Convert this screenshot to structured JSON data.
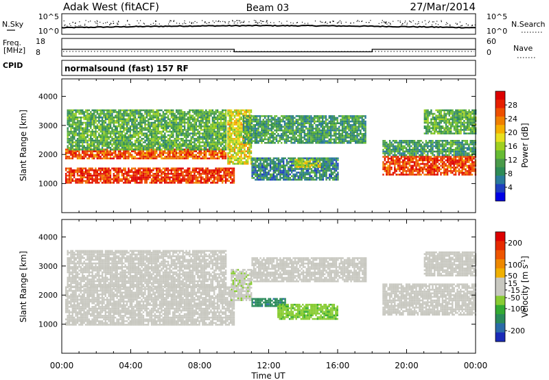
{
  "header": {
    "site": "Adak West (fitACF)",
    "beam": "Beam 03",
    "date": "27/Mar/2014"
  },
  "noise_panel": {
    "left_label": "N.Sky",
    "left_ticks": [
      "10^5",
      "10^0"
    ],
    "right_label": "N.Search",
    "right_ticks": [
      "10^5",
      "10^0"
    ]
  },
  "freq_panel": {
    "left_label_1": "Freq.",
    "left_label_2": "[MHz]",
    "left_ticks": [
      "18",
      "8"
    ],
    "right_label": "Nave",
    "right_ticks": [
      "60",
      "0"
    ],
    "freq_steps": [
      {
        "t0": 0,
        "t1": 10,
        "mhz": 12.5
      },
      {
        "t0": 10,
        "t1": 18,
        "mhz": 10.5
      },
      {
        "t0": 18,
        "t1": 24,
        "mhz": 12.5
      }
    ]
  },
  "cpid": {
    "label": "CPID",
    "program": "normalsound (fast) 157 RF"
  },
  "x_axis": {
    "ticks": [
      "00:00",
      "04:00",
      "08:00",
      "12:00",
      "16:00",
      "20:00",
      "00:00"
    ],
    "label": "Time UT"
  },
  "colors": {
    "frame": "#000000",
    "velocity_ground": "#c8c8c0"
  },
  "chart_data": [
    {
      "type": "heatmap",
      "quantity": "Power",
      "ylabel": "Slant Range [km]",
      "yticks": [
        "1000",
        "2000",
        "3000",
        "4000"
      ],
      "ylim": [
        0,
        4600
      ],
      "xlim": [
        0,
        24
      ],
      "colorbar": {
        "label": "Power [dB]",
        "ticks": [
          "28",
          "24",
          "20",
          "16",
          "12",
          "8",
          "4"
        ],
        "range": [
          0,
          32
        ],
        "colors": [
          "#0000e6",
          "#1f3fbf",
          "#2a7a9a",
          "#2e8b57",
          "#4a9a4a",
          "#66bb33",
          "#a0d020",
          "#e8e020",
          "#f5b000",
          "#f08000",
          "#ee5000",
          "#e62000",
          "#dd0000"
        ]
      },
      "echo_regions": [
        {
          "t0": 0.2,
          "t1": 10.0,
          "r0": 1000,
          "r1": 1550,
          "db": 28
        },
        {
          "t0": 0.2,
          "t1": 9.5,
          "r0": 1850,
          "r1": 2200,
          "db": 26
        },
        {
          "t0": 0.3,
          "t1": 9.5,
          "r0": 2200,
          "r1": 3550,
          "db": 12
        },
        {
          "t0": 9.6,
          "t1": 11.0,
          "r0": 1700,
          "r1": 3550,
          "db": 18
        },
        {
          "t0": 10.5,
          "t1": 17.6,
          "r0": 2400,
          "r1": 3350,
          "db": 10
        },
        {
          "t0": 11.0,
          "t1": 16.0,
          "r0": 1150,
          "r1": 1900,
          "db": 8
        },
        {
          "t0": 13.5,
          "t1": 15.0,
          "r0": 1550,
          "r1": 1850,
          "db": 16
        },
        {
          "t0": 18.6,
          "t1": 24.0,
          "r0": 1300,
          "r1": 1950,
          "db": 27
        },
        {
          "t0": 18.6,
          "t1": 24.0,
          "r0": 2000,
          "r1": 2500,
          "db": 10
        },
        {
          "t0": 21.0,
          "t1": 24.0,
          "r0": 2700,
          "r1": 3550,
          "db": 12
        }
      ]
    },
    {
      "type": "heatmap",
      "quantity": "Velocity",
      "ylabel": "Slant Range [km]",
      "yticks": [
        "1000",
        "2000",
        "3000",
        "4000"
      ],
      "ylim": [
        0,
        4600
      ],
      "xlim": [
        0,
        24
      ],
      "colorbar": {
        "label": "Velocity [m s^-1]",
        "ticks": [
          "200",
          "100",
          "50",
          "15",
          "-15",
          "-50",
          "-100",
          "-200"
        ],
        "range": [
          -250,
          250
        ],
        "colors": [
          "#1a2ab8",
          "#2a6aa8",
          "#2a8a5a",
          "#33aa33",
          "#88cc33",
          "#c8c8c0",
          "#c8c8c0",
          "#f0b000",
          "#ee8800",
          "#ee5500",
          "#e62a00",
          "#dd0000"
        ]
      },
      "echo_regions": [
        {
          "t0": 0.2,
          "t1": 10.0,
          "r0": 1000,
          "r1": 2300,
          "mps": 0
        },
        {
          "t0": 0.3,
          "t1": 9.5,
          "r0": 2300,
          "r1": 3550,
          "mps": 0
        },
        {
          "t0": 9.8,
          "t1": 11.0,
          "r0": 1800,
          "r1": 2900,
          "mps": -30
        },
        {
          "t0": 11.0,
          "t1": 17.6,
          "r0": 2500,
          "r1": 3300,
          "mps": 0
        },
        {
          "t0": 11.0,
          "t1": 13.0,
          "r0": 1600,
          "r1": 1900,
          "mps": -150
        },
        {
          "t0": 12.5,
          "t1": 16.0,
          "r0": 1150,
          "r1": 1700,
          "mps": -70
        },
        {
          "t0": 18.6,
          "t1": 24.0,
          "r0": 1300,
          "r1": 2400,
          "mps": 0
        },
        {
          "t0": 21.0,
          "t1": 24.0,
          "r0": 2700,
          "r1": 3500,
          "mps": 0
        }
      ]
    }
  ]
}
